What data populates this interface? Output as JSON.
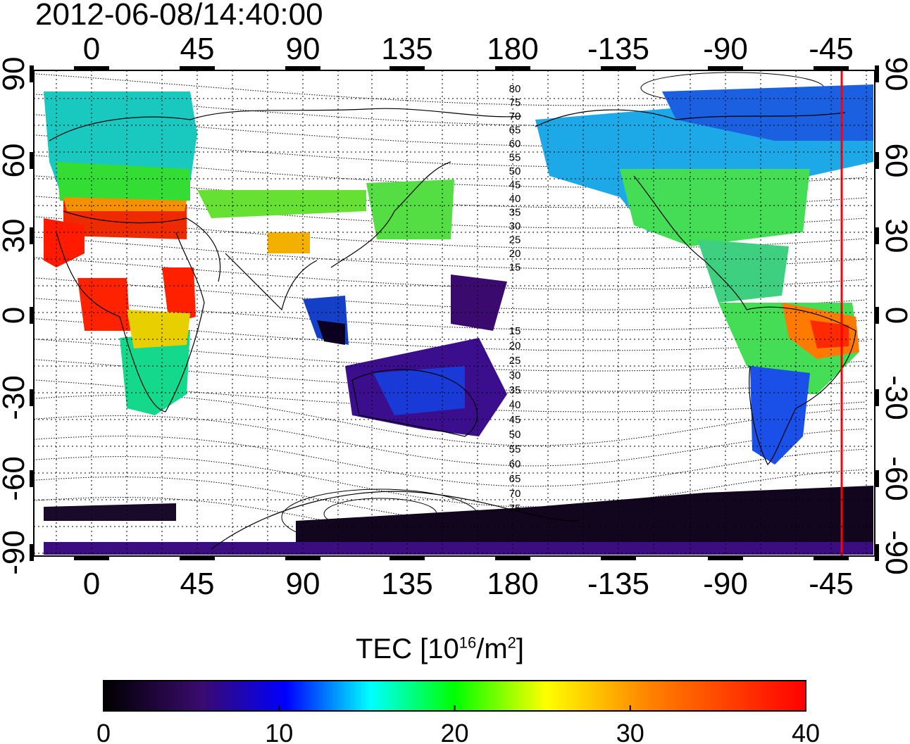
{
  "title": "2012-06-08/14:40:00",
  "map": {
    "top_lon_labels": [
      "0",
      "45",
      "90",
      "135",
      "180",
      "-135",
      "-90",
      "-45"
    ],
    "bottom_lon_labels": [
      "0",
      "45",
      "90",
      "135",
      "180",
      "-135",
      "-90",
      "-45"
    ],
    "left_lat_labels": [
      "90",
      "60",
      "30",
      "0",
      "-30",
      "-60",
      "-90"
    ],
    "right_lat_labels": [
      "90",
      "60",
      "30",
      "0",
      "-30",
      "-60",
      "-90"
    ],
    "contour_labels": [
      "80",
      "75",
      "70",
      "65",
      "60",
      "55",
      "50",
      "45",
      "40",
      "35",
      "30",
      "25",
      "20",
      "15",
      "15",
      "20",
      "25",
      "30",
      "35",
      "40",
      "45",
      "50",
      "55",
      "60",
      "65",
      "70",
      "75"
    ],
    "terminator_color": "#ff0000"
  },
  "colorbar": {
    "title_prefix": "TEC  [10",
    "title_exp": "16",
    "title_mid": "/m",
    "title_exp2": "2",
    "title_suffix": "]",
    "tick_labels": [
      "0",
      "10",
      "20",
      "30",
      "40"
    ],
    "range": [
      0,
      40
    ],
    "stops": [
      "#000000",
      "#3a0a6e",
      "#0000ff",
      "#00ffff",
      "#00ff00",
      "#ffff00",
      "#ff8000",
      "#ff0000"
    ]
  }
}
